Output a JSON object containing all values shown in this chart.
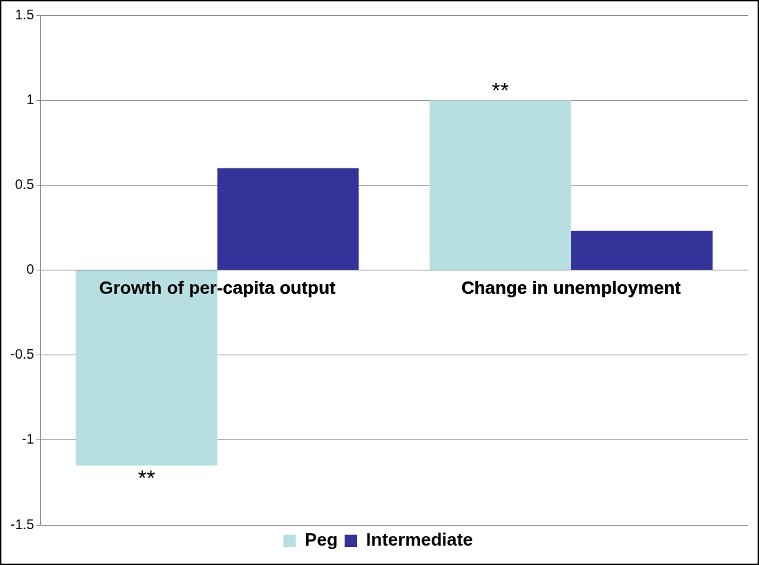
{
  "chart_data": {
    "type": "bar",
    "categories": [
      "Growth of per-capita output",
      "Change in unemployment"
    ],
    "series": [
      {
        "name": "Peg",
        "color": "#b7dfe1",
        "values": [
          -1.15,
          1.0
        ]
      },
      {
        "name": "Intermediate",
        "color": "#333399",
        "values": [
          0.6,
          0.23
        ]
      }
    ],
    "ylim": [
      -1.5,
      1.5
    ],
    "yticks": [
      -1.5,
      -1,
      -0.5,
      0,
      0.5,
      1,
      1.5
    ],
    "grid": "y",
    "legend": "bottom",
    "annotations": [
      {
        "text": "**",
        "x": "Growth of per-capita output",
        "y": -1.15
      },
      {
        "text": "**",
        "x": "Change in unemployment",
        "y": 1.0
      }
    ]
  }
}
